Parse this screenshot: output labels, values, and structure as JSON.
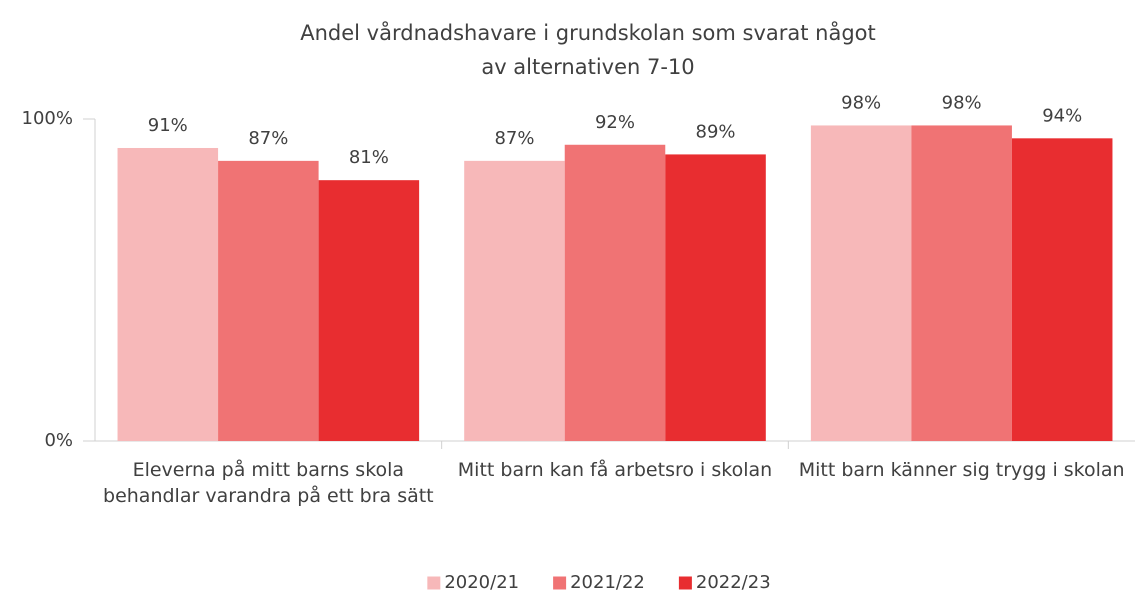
{
  "chart_data": {
    "type": "bar",
    "title": "Andel vårdnadshavare i grundskolan som svarat något av alternativen 7-10",
    "categories": [
      "Eleverna på mitt barns skola behandlar varandra på ett bra sätt",
      "Mitt barn kan få arbetsro i skolan",
      "Mitt barn känner sig trygg i skolan"
    ],
    "series": [
      {
        "name": "2020/21",
        "color": "#f7b8b9",
        "values": [
          91,
          87,
          98
        ],
        "value_labels": [
          "91%",
          "87%",
          "98%"
        ]
      },
      {
        "name": "2021/22",
        "color": "#f07374",
        "values": [
          87,
          92,
          98
        ],
        "value_labels": [
          "87%",
          "92%",
          "98%"
        ]
      },
      {
        "name": "2022/23",
        "color": "#e82d30",
        "values": [
          81,
          89,
          94
        ],
        "value_labels": [
          "81%",
          "89%",
          "94%"
        ]
      }
    ],
    "ylim": [
      0,
      100
    ],
    "yticks": [
      {
        "value": 0,
        "label": "0%"
      },
      {
        "value": 100,
        "label": "100%"
      }
    ],
    "grid": false,
    "legend": "bottom"
  }
}
